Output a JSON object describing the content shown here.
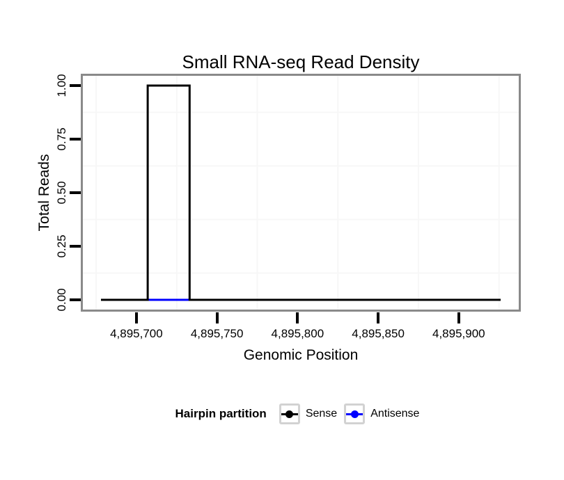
{
  "window": {
    "background": "#ffffff"
  },
  "chart_data": {
    "type": "line",
    "subtype": "step",
    "title": "Small RNA-seq Read Density",
    "xlabel": "Genomic Position",
    "ylabel": "Total Reads",
    "xlim": [
      4895678,
      4895926
    ],
    "ylim": [
      0,
      1
    ],
    "grid": "minor gridlines only, very faint; white panel with gray border",
    "x_ticks": [
      {
        "value": 4895700,
        "label": "4,895,700"
      },
      {
        "value": 4895750,
        "label": "4,895,750"
      },
      {
        "value": 4895800,
        "label": "4,895,800"
      },
      {
        "value": 4895850,
        "label": "4,895,850"
      },
      {
        "value": 4895900,
        "label": "4,895,900"
      }
    ],
    "y_ticks": [
      {
        "value": 0.0,
        "label": "0.00"
      },
      {
        "value": 0.25,
        "label": "0.25"
      },
      {
        "value": 0.5,
        "label": "0.50"
      },
      {
        "value": 0.75,
        "label": "0.75"
      },
      {
        "value": 1.0,
        "label": "1.00"
      }
    ],
    "x_minor_gridlines": [
      4895675,
      4895725,
      4895775,
      4895825,
      4895875,
      4895925
    ],
    "y_minor_gridlines": [
      0.125,
      0.375,
      0.625,
      0.875
    ],
    "series": [
      {
        "name": "Antisense",
        "color": "#0000ff",
        "points": [
          [
            4895678,
            0
          ],
          [
            4895926,
            0
          ]
        ]
      },
      {
        "name": "Sense",
        "color": "#000000",
        "points": [
          [
            4895678,
            0
          ],
          [
            4895707,
            0
          ],
          [
            4895707,
            1
          ],
          [
            4895733,
            1
          ],
          [
            4895733,
            0
          ],
          [
            4895926,
            0
          ]
        ]
      }
    ],
    "legend": {
      "title": "Hairpin partition",
      "position": "bottom",
      "entries": [
        {
          "label": "Sense",
          "color": "#000000"
        },
        {
          "label": "Antisense",
          "color": "#0000ff"
        }
      ]
    }
  },
  "colors": {
    "panel_border": "#8a8a8a",
    "minor_grid": "#f7f7f7",
    "tick_mark": "#000000",
    "text": "#000000",
    "legend_key_border": "#d2d2d2"
  }
}
